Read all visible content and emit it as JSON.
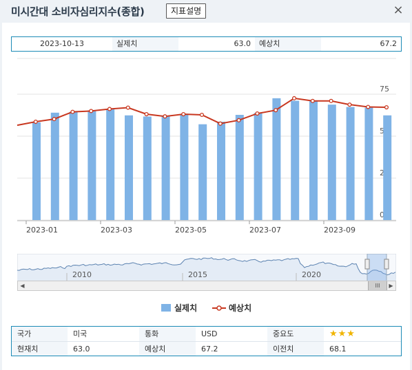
{
  "window": {
    "title": "미시간대 소비자심리지수(종합)",
    "desc_button": "지표설명",
    "close_icon": "×"
  },
  "top_info": {
    "date": "2023-10-13",
    "actual_label": "실제치",
    "actual_value": "63.0",
    "forecast_label": "예상치",
    "forecast_value": "67.2"
  },
  "chart_data": {
    "type": "bar",
    "series": [
      {
        "name": "실제치",
        "color": "#7fb3e6",
        "values": [
          58.2,
          64.0,
          64.5,
          64.9,
          66.1,
          62.4,
          61.7,
          62.0,
          63.0,
          57.1,
          58.6,
          62.7,
          63.8,
          72.6,
          71.1,
          71.0,
          68.8,
          67.4,
          67.0,
          62.4
        ]
      },
      {
        "name": "예상치",
        "color": "#c8371f",
        "values": [
          56.5,
          58.6,
          60.2,
          64.5,
          65.0,
          66.2,
          67.0,
          63.1,
          61.8,
          63.1,
          62.7,
          57.5,
          59.5,
          63.5,
          65.5,
          72.6,
          71.0,
          71.0,
          68.8,
          67.4,
          67.2
        ]
      }
    ],
    "xticks": [
      "2023-01",
      "2023-03",
      "2023-05",
      "2023-07",
      "2023-09"
    ],
    "yticks": [
      "75",
      "50",
      "25",
      "0"
    ],
    "ylim": [
      0,
      75
    ],
    "grid": true
  },
  "navigator": {
    "years": [
      "2010",
      "2015",
      "2020"
    ],
    "thumb_label": "III",
    "left_arrow": "◀",
    "right_arrow": "▶"
  },
  "legend": {
    "actual": "실제치",
    "forecast": "예상치"
  },
  "info_table": {
    "country_label": "국가",
    "country_value": "미국",
    "currency_label": "통화",
    "currency_value": "USD",
    "importance_label": "중요도",
    "importance_stars": "★★★",
    "current_label": "현재치",
    "current_value": "63.0",
    "forecast_label": "예상치",
    "forecast_value": "67.2",
    "previous_label": "이전치",
    "previous_value": "68.1"
  }
}
